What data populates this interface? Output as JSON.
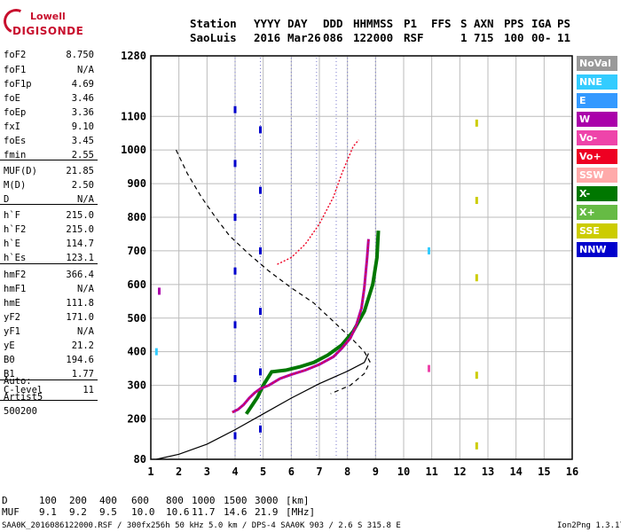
{
  "logo": {
    "line1": "Lowell",
    "line2": "DIGISONDE"
  },
  "header": {
    "labels": [
      "Station",
      "YYYY",
      "DAY",
      "DDD",
      "HHMMSS",
      "P1",
      "FFS",
      "S",
      "AXN",
      "PPS",
      "IGA",
      "PS"
    ],
    "values": [
      "SaoLuis",
      "2016",
      "Mar26",
      "086",
      "122000",
      "RSF",
      "",
      "1",
      "715",
      "100",
      "00-",
      "11"
    ]
  },
  "params": [
    {
      "k": "foF2",
      "v": "8.750"
    },
    {
      "k": "foF1",
      "v": "N/A"
    },
    {
      "k": "foF1p",
      "v": "4.69"
    },
    {
      "k": "foE",
      "v": "3.46"
    },
    {
      "k": "foEp",
      "v": "3.36"
    },
    {
      "k": "fxI",
      "v": "9.10"
    },
    {
      "k": "foEs",
      "v": "3.45"
    },
    {
      "k": "fmin",
      "v": "2.55"
    },
    {
      "k": "MUF(D)",
      "v": "21.85"
    },
    {
      "k": "M(D)",
      "v": "2.50"
    },
    {
      "k": "D",
      "v": "N/A"
    },
    {
      "k": "h`F",
      "v": "215.0"
    },
    {
      "k": "h`F2",
      "v": "215.0"
    },
    {
      "k": "h`E",
      "v": "114.7"
    },
    {
      "k": "h`Es",
      "v": "123.1"
    },
    {
      "k": "hmF2",
      "v": "366.4"
    },
    {
      "k": "hmF1",
      "v": "N/A"
    },
    {
      "k": "hmE",
      "v": "111.8"
    },
    {
      "k": "yF2",
      "v": "171.0"
    },
    {
      "k": "yF1",
      "v": "N/A"
    },
    {
      "k": "yE",
      "v": "21.2"
    },
    {
      "k": "B0",
      "v": "194.6"
    },
    {
      "k": "B1",
      "v": "1.77"
    },
    {
      "k": "C-level",
      "v": "11"
    }
  ],
  "auto": {
    "label": "Auto:",
    "program": "Artist5",
    "version": "500200"
  },
  "legend": [
    {
      "label": "NoVal",
      "color": "#999999"
    },
    {
      "label": "NNE",
      "color": "#33ccff"
    },
    {
      "label": "E",
      "color": "#3399ff"
    },
    {
      "label": "W",
      "color": "#aa00aa"
    },
    {
      "label": "Vo-",
      "color": "#ee44aa"
    },
    {
      "label": "Vo+",
      "color": "#ee0022"
    },
    {
      "label": "SSW",
      "color": "#ffaaaa"
    },
    {
      "label": "X-",
      "color": "#007700"
    },
    {
      "label": "X+",
      "color": "#66bb44"
    },
    {
      "label": "SSE",
      "color": "#cccc00"
    },
    {
      "label": "NNW",
      "color": "#0000cc"
    }
  ],
  "muf_table": {
    "d_label": "D",
    "muf_label": "MUF",
    "d": [
      "100",
      "200",
      "400",
      "600",
      "800",
      "1000",
      "1500",
      "3000",
      "[km]"
    ],
    "muf": [
      "9.1",
      "9.2",
      "9.5",
      "10.0",
      "10.6",
      "11.7",
      "14.6",
      "21.9",
      "[MHz]"
    ]
  },
  "footer": {
    "left": "SAA0K_2016086122000.RSF / 300fx256h 50 kHz 5.0 km / DPS-4 SAA0K 903 / 2.6 S 315.8 E",
    "right": "Ion2Png 1.3.17"
  },
  "chart_data": {
    "type": "scatter",
    "xlim": [
      1,
      16
    ],
    "ylim": [
      80,
      1280
    ],
    "xticks": [
      1,
      2,
      3,
      4,
      5,
      6,
      7,
      8,
      9,
      10,
      11,
      12,
      13,
      14,
      15,
      16
    ],
    "yticks": [
      80,
      200,
      300,
      400,
      500,
      600,
      700,
      800,
      900,
      1000,
      1100,
      1280
    ],
    "ytick_labels": [
      "80",
      "200",
      "300",
      "400",
      "500",
      "600",
      "700",
      "800",
      "900",
      "1000",
      "1100",
      "1280"
    ],
    "grid": true,
    "scaled_profile": [
      [
        1.2,
        80
      ],
      [
        2.0,
        95
      ],
      [
        3.0,
        125
      ],
      [
        4.0,
        168
      ],
      [
        5.0,
        215
      ],
      [
        6.0,
        262
      ],
      [
        7.0,
        305
      ],
      [
        8.0,
        342
      ],
      [
        8.6,
        368
      ],
      [
        8.75,
        395
      ]
    ],
    "o_trace": [
      [
        3.9,
        220
      ],
      [
        4.1,
        228
      ],
      [
        4.3,
        242
      ],
      [
        4.5,
        262
      ],
      [
        4.7,
        278
      ],
      [
        4.9,
        290
      ],
      [
        5.2,
        300
      ],
      [
        5.6,
        320
      ],
      [
        6.0,
        332
      ],
      [
        6.5,
        345
      ],
      [
        7.0,
        362
      ],
      [
        7.5,
        385
      ],
      [
        7.8,
        410
      ],
      [
        8.1,
        440
      ],
      [
        8.3,
        475
      ],
      [
        8.5,
        530
      ],
      [
        8.6,
        590
      ],
      [
        8.7,
        680
      ],
      [
        8.75,
        735
      ]
    ],
    "x_trace": [
      [
        4.4,
        215
      ],
      [
        4.6,
        240
      ],
      [
        4.8,
        265
      ],
      [
        5.0,
        300
      ],
      [
        5.3,
        340
      ],
      [
        5.8,
        345
      ],
      [
        6.3,
        355
      ],
      [
        6.8,
        368
      ],
      [
        7.3,
        390
      ],
      [
        7.8,
        420
      ],
      [
        8.2,
        460
      ],
      [
        8.6,
        520
      ],
      [
        8.9,
        600
      ],
      [
        9.05,
        680
      ],
      [
        9.1,
        760
      ]
    ],
    "multi_hop_trace": [
      [
        5.5,
        660
      ],
      [
        6.0,
        680
      ],
      [
        6.5,
        720
      ],
      [
        7.0,
        780
      ],
      [
        7.5,
        860
      ],
      [
        7.8,
        930
      ],
      [
        8.0,
        970
      ],
      [
        8.2,
        1010
      ],
      [
        8.4,
        1030
      ]
    ],
    "dashed_profile": [
      [
        1.9,
        1000
      ],
      [
        2.3,
        930
      ],
      [
        2.8,
        860
      ],
      [
        3.3,
        800
      ],
      [
        3.8,
        745
      ],
      [
        4.5,
        690
      ],
      [
        5.2,
        640
      ],
      [
        6.0,
        590
      ],
      [
        6.8,
        545
      ],
      [
        7.5,
        490
      ],
      [
        8.2,
        435
      ],
      [
        8.6,
        400
      ],
      [
        8.8,
        370
      ],
      [
        8.6,
        335
      ],
      [
        8.1,
        300
      ],
      [
        7.4,
        275
      ]
    ],
    "ionogram_points": [
      {
        "x": 4.0,
        "y": 150,
        "series": "NNW"
      },
      {
        "x": 4.0,
        "y": 320,
        "series": "NNW"
      },
      {
        "x": 4.0,
        "y": 480,
        "series": "NNW"
      },
      {
        "x": 4.0,
        "y": 640,
        "series": "NNW"
      },
      {
        "x": 4.0,
        "y": 800,
        "series": "NNW"
      },
      {
        "x": 4.0,
        "y": 960,
        "series": "NNW"
      },
      {
        "x": 4.0,
        "y": 1120,
        "series": "NNW"
      },
      {
        "x": 4.9,
        "y": 170,
        "series": "NNW"
      },
      {
        "x": 4.9,
        "y": 340,
        "series": "NNW"
      },
      {
        "x": 4.9,
        "y": 520,
        "series": "NNW"
      },
      {
        "x": 4.9,
        "y": 700,
        "series": "NNW"
      },
      {
        "x": 4.9,
        "y": 880,
        "series": "NNW"
      },
      {
        "x": 4.9,
        "y": 1060,
        "series": "NNW"
      },
      {
        "x": 12.6,
        "y": 120,
        "series": "SSE"
      },
      {
        "x": 12.6,
        "y": 330,
        "series": "SSE"
      },
      {
        "x": 12.6,
        "y": 620,
        "series": "SSE"
      },
      {
        "x": 12.6,
        "y": 850,
        "series": "SSE"
      },
      {
        "x": 12.6,
        "y": 1080,
        "series": "SSE"
      },
      {
        "x": 10.9,
        "y": 350,
        "series": "Vo-"
      },
      {
        "x": 10.9,
        "y": 700,
        "series": "NNE"
      },
      {
        "x": 1.3,
        "y": 580,
        "series": "W"
      },
      {
        "x": 1.2,
        "y": 400,
        "series": "NNE"
      }
    ]
  }
}
